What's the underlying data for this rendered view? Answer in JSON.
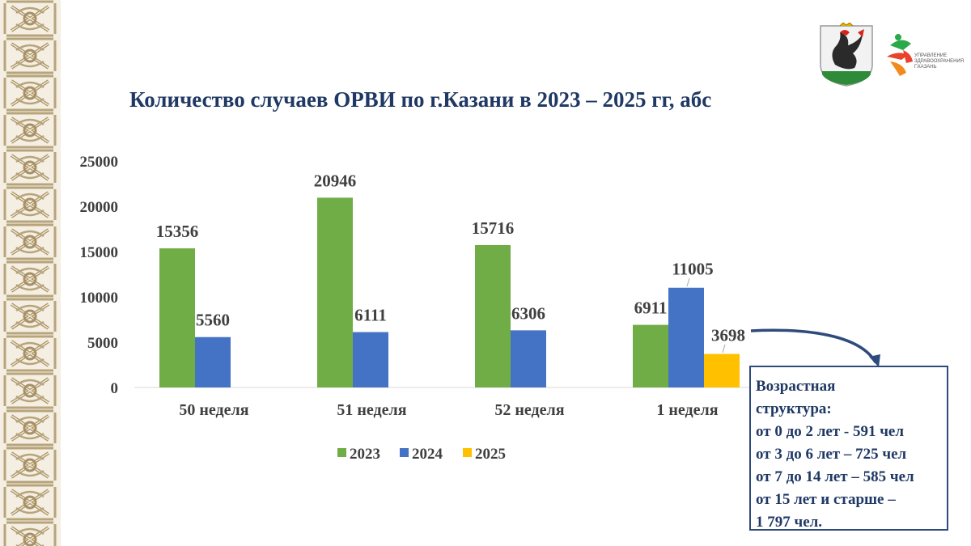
{
  "title": "Количество случаев ОРВИ по г.Казани в 2023 – 2025 гг, абс",
  "logos": {
    "coat_of_arms": "kazan-coat-of-arms",
    "health_dept_text": "УПРАВЛЕНИЕ ЗДРАВООХРАНЕНИЯ Г.КАЗАНЬ"
  },
  "chart_data": {
    "type": "bar",
    "title": "Количество случаев ОРВИ по г.Казани в 2023 – 2025 гг, абс",
    "categories": [
      "50 неделя",
      "51 неделя",
      "52 неделя",
      "1 неделя"
    ],
    "series": [
      {
        "name": "2023",
        "color": "#70ad47",
        "values": [
          15356,
          20946,
          15716,
          6911
        ]
      },
      {
        "name": "2024",
        "color": "#4472c4",
        "values": [
          5560,
          6111,
          6306,
          11005
        ]
      },
      {
        "name": "2025",
        "color": "#ffc000",
        "values": [
          null,
          null,
          null,
          3698
        ]
      }
    ],
    "yticks": [
      0,
      5000,
      10000,
      15000,
      20000,
      25000
    ],
    "ylim": [
      0,
      25000
    ],
    "xlabel": "",
    "ylabel": "",
    "grid": false,
    "legend": "bottom"
  },
  "info": {
    "lines": [
      "Возрастная",
      "структура:",
      "от 0 до 2 лет -  591 чел",
      "от 3 до 6 лет – 725 чел",
      "от 7 до 14 лет – 585 чел",
      "от 15 лет и старше –",
      "1 797 чел."
    ]
  }
}
